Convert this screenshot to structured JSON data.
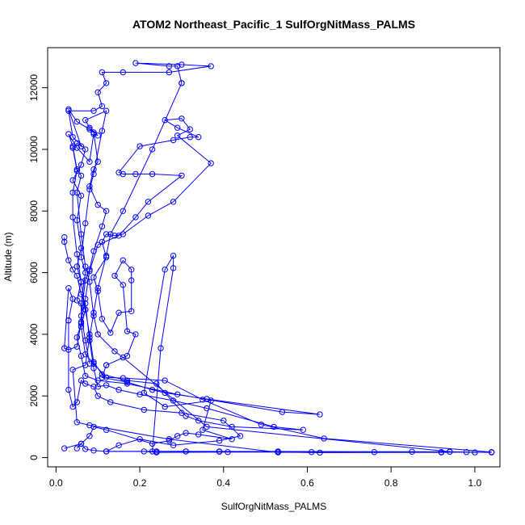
{
  "chart_data": {
    "type": "line",
    "title": "ATOM2 Northeast_Pacific_1 SulfOrgNitMass_PALMS",
    "xlabel": "SulfOrgNitMass_PALMS",
    "ylabel": "Altitude (m)",
    "xlim": [
      -0.02,
      1.06
    ],
    "ylim": [
      -300,
      13300
    ],
    "x_ticks": [
      0.0,
      0.2,
      0.4,
      0.6,
      0.8,
      1.0
    ],
    "x_tick_labels": [
      "0.0",
      "0.2",
      "0.4",
      "0.6",
      "0.8",
      "1.0"
    ],
    "y_ticks": [
      0,
      2000,
      4000,
      6000,
      8000,
      10000,
      12000
    ],
    "y_tick_labels": [
      "0",
      "2000",
      "4000",
      "6000",
      "8000",
      "10000",
      "12000"
    ],
    "grid": false,
    "line_color": "#0000ff",
    "marker": "open-circle",
    "series": [
      {
        "points": [
          [
            0.02,
            300
          ],
          [
            0.06,
            450
          ],
          [
            0.07,
            280
          ],
          [
            0.09,
            230
          ],
          [
            0.12,
            200
          ],
          [
            0.24,
            200
          ],
          [
            0.31,
            200
          ],
          [
            0.39,
            190
          ],
          [
            0.53,
            200
          ],
          [
            0.76,
            180
          ],
          [
            0.92,
            180
          ],
          [
            0.94,
            190
          ],
          [
            1.0,
            170
          ],
          [
            1.04,
            180
          ],
          [
            0.64,
            620
          ],
          [
            0.49,
            1070
          ],
          [
            0.35,
            1880
          ],
          [
            0.26,
            2500
          ],
          [
            0.16,
            2580
          ],
          [
            0.12,
            2600
          ],
          [
            0.09,
            3050
          ],
          [
            0.07,
            3350
          ],
          [
            0.06,
            4250
          ],
          [
            0.07,
            4800
          ],
          [
            0.05,
            5100
          ],
          [
            0.06,
            5700
          ],
          [
            0.05,
            6200
          ],
          [
            0.06,
            6800
          ],
          [
            0.05,
            7700
          ],
          [
            0.06,
            8500
          ],
          [
            0.04,
            9000
          ],
          [
            0.06,
            9500
          ],
          [
            0.07,
            10000
          ],
          [
            0.04,
            10400
          ],
          [
            0.03,
            11250
          ],
          [
            0.09,
            11250
          ],
          [
            0.11,
            11400
          ],
          [
            0.1,
            11850
          ],
          [
            0.12,
            12150
          ],
          [
            0.11,
            12500
          ],
          [
            0.16,
            12500
          ],
          [
            0.27,
            12500
          ],
          [
            0.37,
            12700
          ],
          [
            0.3,
            12750
          ],
          [
            0.19,
            12800
          ],
          [
            0.27,
            12700
          ],
          [
            0.29,
            12700
          ],
          [
            0.3,
            12150
          ]
        ]
      },
      {
        "points": [
          [
            0.3,
            12150
          ],
          [
            0.23,
            10000
          ],
          [
            0.16,
            8000
          ],
          [
            0.13,
            7250
          ],
          [
            0.12,
            6550
          ],
          [
            0.1,
            5500
          ],
          [
            0.09,
            4700
          ],
          [
            0.08,
            3900
          ],
          [
            0.07,
            3000
          ],
          [
            0.04,
            2850
          ],
          [
            0.05,
            1150
          ],
          [
            0.08,
            1050
          ],
          [
            0.27,
            600
          ],
          [
            0.53,
            170
          ],
          [
            0.61,
            180
          ],
          [
            0.94,
            190
          ],
          [
            0.36,
            1000
          ],
          [
            0.16,
            3250
          ],
          [
            0.14,
            3450
          ],
          [
            0.1,
            4000
          ],
          [
            0.09,
            4600
          ],
          [
            0.08,
            5700
          ],
          [
            0.07,
            6200
          ],
          [
            0.06,
            7250
          ],
          [
            0.05,
            8600
          ],
          [
            0.06,
            9150
          ],
          [
            0.05,
            9350
          ],
          [
            0.04,
            10100
          ],
          [
            0.03,
            10500
          ],
          [
            0.05,
            10050
          ],
          [
            0.08,
            9600
          ],
          [
            0.09,
            10500
          ],
          [
            0.1,
            10450
          ],
          [
            0.08,
            10700
          ],
          [
            0.07,
            10950
          ],
          [
            0.12,
            11250
          ],
          [
            0.11,
            10600
          ],
          [
            0.09,
            9200
          ],
          [
            0.08,
            8700
          ],
          [
            0.07,
            7600
          ],
          [
            0.06,
            6500
          ],
          [
            0.07,
            6000
          ],
          [
            0.06,
            5000
          ],
          [
            0.06,
            4350
          ],
          [
            0.05,
            3900
          ],
          [
            0.06,
            3300
          ],
          [
            0.07,
            2650
          ],
          [
            0.1,
            2500
          ],
          [
            0.17,
            2400
          ],
          [
            0.29,
            2050
          ],
          [
            0.54,
            1480
          ],
          [
            0.63,
            1400
          ],
          [
            0.36,
            1900
          ],
          [
            0.26,
            2100
          ],
          [
            0.23,
            2200
          ],
          [
            0.17,
            2450
          ],
          [
            0.11,
            2600
          ],
          [
            0.12,
            3000
          ]
        ]
      },
      {
        "points": [
          [
            0.12,
            3000
          ],
          [
            0.17,
            3300
          ],
          [
            0.19,
            4000
          ],
          [
            0.17,
            4100
          ],
          [
            0.16,
            5600
          ],
          [
            0.14,
            5900
          ],
          [
            0.16,
            6400
          ],
          [
            0.18,
            6100
          ],
          [
            0.18,
            5750
          ],
          [
            0.18,
            4750
          ],
          [
            0.15,
            4700
          ],
          [
            0.13,
            4050
          ],
          [
            0.11,
            4500
          ],
          [
            0.1,
            5400
          ],
          [
            0.09,
            5850
          ],
          [
            0.12,
            6500
          ],
          [
            0.11,
            7000
          ],
          [
            0.12,
            7250
          ],
          [
            0.14,
            7200
          ],
          [
            0.16,
            7250
          ],
          [
            0.22,
            7850
          ],
          [
            0.28,
            8300
          ],
          [
            0.37,
            9550
          ],
          [
            0.29,
            10450
          ],
          [
            0.32,
            10650
          ],
          [
            0.3,
            11000
          ],
          [
            0.26,
            10950
          ],
          [
            0.29,
            10700
          ],
          [
            0.34,
            10400
          ],
          [
            0.32,
            10400
          ],
          [
            0.28,
            10300
          ],
          [
            0.2,
            10100
          ],
          [
            0.15,
            9250
          ],
          [
            0.16,
            9200
          ],
          [
            0.19,
            9200
          ],
          [
            0.23,
            9200
          ],
          [
            0.3,
            9150
          ],
          [
            0.22,
            8300
          ],
          [
            0.19,
            7800
          ],
          [
            0.15,
            7200
          ],
          [
            0.1,
            6900
          ],
          [
            0.08,
            6050
          ],
          [
            0.07,
            5150
          ],
          [
            0.06,
            4400
          ],
          [
            0.05,
            3600
          ],
          [
            0.03,
            3500
          ],
          [
            0.02,
            3550
          ],
          [
            0.03,
            5500
          ],
          [
            0.04,
            5150
          ],
          [
            0.03,
            4450
          ]
        ]
      },
      {
        "points": [
          [
            0.03,
            4450
          ],
          [
            0.03,
            2200
          ],
          [
            0.04,
            1650
          ],
          [
            0.05,
            1800
          ],
          [
            0.06,
            2500
          ],
          [
            0.07,
            2400
          ],
          [
            0.09,
            2300
          ],
          [
            0.1,
            2000
          ],
          [
            0.13,
            1800
          ],
          [
            0.21,
            1550
          ],
          [
            0.3,
            1450
          ],
          [
            0.4,
            1200
          ],
          [
            0.44,
            700
          ],
          [
            0.39,
            550
          ],
          [
            0.28,
            400
          ],
          [
            0.2,
            600
          ],
          [
            0.15,
            400
          ],
          [
            0.12,
            200
          ],
          [
            0.21,
            200
          ],
          [
            0.24,
            170
          ],
          [
            0.41,
            180
          ],
          [
            0.53,
            180
          ],
          [
            0.63,
            160
          ],
          [
            0.92,
            170
          ],
          [
            0.98,
            180
          ],
          [
            1.04,
            170
          ],
          [
            0.85,
            190
          ],
          [
            0.39,
            200
          ],
          [
            0.31,
            200
          ],
          [
            0.23,
            200
          ],
          [
            0.25,
            3550
          ],
          [
            0.28,
            6150
          ],
          [
            0.28,
            6550
          ],
          [
            0.26,
            6100
          ],
          [
            0.21,
            2100
          ],
          [
            0.26,
            1650
          ],
          [
            0.37,
            1850
          ],
          [
            0.35,
            900
          ],
          [
            0.42,
            600
          ],
          [
            0.34,
            750
          ],
          [
            0.31,
            800
          ],
          [
            0.29,
            700
          ],
          [
            0.27,
            550
          ],
          [
            0.23,
            450
          ],
          [
            0.12,
            900
          ],
          [
            0.09,
            1000
          ],
          [
            0.08,
            700
          ],
          [
            0.06,
            450
          ],
          [
            0.05,
            300
          ]
        ]
      },
      {
        "points": [
          [
            0.02,
            7150
          ],
          [
            0.02,
            7000
          ],
          [
            0.03,
            6400
          ],
          [
            0.04,
            6100
          ],
          [
            0.05,
            5900
          ],
          [
            0.06,
            5300
          ],
          [
            0.07,
            5000
          ],
          [
            0.08,
            3800
          ],
          [
            0.09,
            2900
          ],
          [
            0.1,
            2300
          ],
          [
            0.12,
            2350
          ],
          [
            0.15,
            2200
          ],
          [
            0.2,
            2050
          ],
          [
            0.28,
            1850
          ],
          [
            0.36,
            1600
          ],
          [
            0.52,
            1000
          ],
          [
            0.59,
            900
          ],
          [
            0.42,
            1000
          ],
          [
            0.34,
            1200
          ],
          [
            0.31,
            1350
          ],
          [
            0.24,
            2400
          ],
          [
            0.17,
            2500
          ],
          [
            0.11,
            2700
          ],
          [
            0.09,
            3100
          ],
          [
            0.08,
            4000
          ],
          [
            0.07,
            4800
          ],
          [
            0.06,
            5700
          ],
          [
            0.05,
            6600
          ],
          [
            0.04,
            7800
          ],
          [
            0.04,
            8600
          ],
          [
            0.05,
            9300
          ],
          [
            0.04,
            10050
          ],
          [
            0.05,
            10200
          ],
          [
            0.06,
            10100
          ],
          [
            0.03,
            11300
          ],
          [
            0.05,
            10900
          ],
          [
            0.08,
            10650
          ],
          [
            0.09,
            10550
          ],
          [
            0.1,
            9600
          ],
          [
            0.09,
            9350
          ],
          [
            0.08,
            8800
          ],
          [
            0.1,
            8200
          ],
          [
            0.12,
            8000
          ],
          [
            0.11,
            7500
          ],
          [
            0.09,
            6700
          ],
          [
            0.08,
            6100
          ],
          [
            0.07,
            5750
          ],
          [
            0.06,
            4600
          ],
          [
            0.07,
            3800
          ],
          [
            0.08,
            3050
          ]
        ]
      }
    ]
  }
}
